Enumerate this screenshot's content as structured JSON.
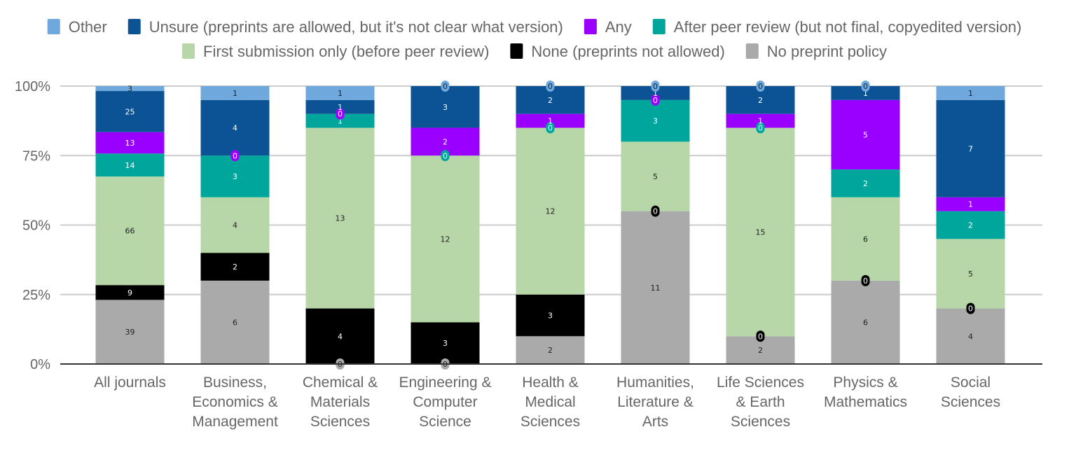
{
  "chart_data": {
    "type": "bar",
    "stacked": "percent",
    "title": "",
    "xlabel": "",
    "ylabel": "",
    "ylim": [
      0,
      100
    ],
    "y_ticks": [
      "0%",
      "25%",
      "50%",
      "75%",
      "100%"
    ],
    "grid": true,
    "legend_position": "top",
    "categories": [
      [
        "All journals"
      ],
      [
        "Business,",
        "Economics &",
        "Management"
      ],
      [
        "Chemical &",
        "Materials",
        "Sciences"
      ],
      [
        "Engineering &",
        "Computer",
        "Science"
      ],
      [
        "Health &",
        "Medical",
        "Sciences"
      ],
      [
        "Humanities,",
        "Literature &",
        "Arts"
      ],
      [
        "Life Sciences",
        "& Earth",
        "Sciences"
      ],
      [
        "Physics &",
        "Mathematics"
      ],
      [
        "Social",
        "Sciences"
      ]
    ],
    "series": [
      {
        "name": "No preprint policy",
        "color": "#aaaaaa",
        "label_color": "#222222",
        "values": [
          39,
          6,
          0,
          0,
          2,
          11,
          2,
          6,
          4
        ]
      },
      {
        "name": "None (preprints not allowed)",
        "color": "#000000",
        "label_color": "#ffffff",
        "values": [
          9,
          2,
          4,
          3,
          3,
          0,
          0,
          0,
          0
        ]
      },
      {
        "name": "First submission only (before peer review)",
        "color": "#b7d7a8",
        "label_color": "#222222",
        "values": [
          66,
          4,
          13,
          12,
          12,
          5,
          15,
          6,
          5
        ]
      },
      {
        "name": "After peer review (but not final, copyedited version)",
        "color": "#00a69c",
        "label_color": "#ffffff",
        "values": [
          14,
          3,
          1,
          0,
          0,
          3,
          0,
          2,
          2
        ]
      },
      {
        "name": "Any",
        "color": "#9900ff",
        "label_color": "#ffffff",
        "values": [
          13,
          0,
          0,
          2,
          1,
          0,
          1,
          5,
          1
        ]
      },
      {
        "name": "Unsure (preprints are allowed, but it's not clear what version)",
        "color": "#0b5394",
        "label_color": "#ffffff",
        "values": [
          25,
          4,
          1,
          3,
          2,
          1,
          2,
          1,
          7
        ]
      },
      {
        "name": "Other",
        "color": "#6fa8dc",
        "label_color": "#222222",
        "values": [
          3,
          1,
          1,
          0,
          0,
          0,
          0,
          0,
          1
        ]
      }
    ],
    "legend_rows": [
      [
        "Other",
        "Unsure (preprints are allowed, but it's not clear what version)",
        "Any",
        "After peer review (but not final, copyedited version)"
      ],
      [
        "First submission only (before peer review)",
        "None (preprints not allowed)",
        "No preprint policy"
      ]
    ]
  }
}
